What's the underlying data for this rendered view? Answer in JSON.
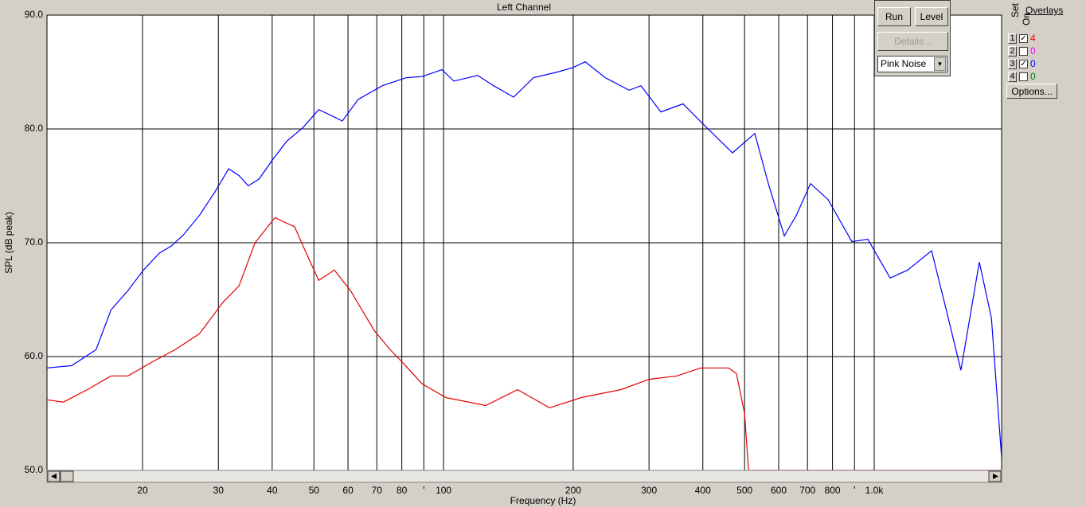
{
  "chart_data": {
    "type": "line",
    "title": "Left Channel",
    "xlabel": "Frequency (Hz)",
    "ylabel": "SPL (dB peak)",
    "xscale": "log",
    "xlim": [
      12,
      1976
    ],
    "ylim": [
      50,
      90
    ],
    "xticks": [
      20,
      30,
      40,
      50,
      60,
      70,
      80,
      100,
      200,
      300,
      400,
      500,
      600,
      700,
      800,
      {
        "value": 1000,
        "label": "1.0k"
      }
    ],
    "xminor": [
      90,
      900
    ],
    "yticks": [
      {
        "value": 50,
        "label": "50.0"
      },
      {
        "value": 60,
        "label": "60.0"
      },
      {
        "value": 70,
        "label": "70.0"
      },
      {
        "value": 80,
        "label": "80.0"
      },
      {
        "value": 90,
        "label": "90.0"
      }
    ],
    "grid": true,
    "series": [
      {
        "color": "#0000ff",
        "x": [
          12,
          13.7,
          15.6,
          16.9,
          18.5,
          20.1,
          21.9,
          23.3,
          24.9,
          27.1,
          29.5,
          31.7,
          33.5,
          35.2,
          37.3,
          40.1,
          43.2,
          47.1,
          51.3,
          54.7,
          58.2,
          63.4,
          72.1,
          81.9,
          89.2,
          99.1,
          105.7,
          120,
          130.7,
          145.4,
          161.8,
          183.8,
          200,
          213.3,
          237.3,
          269.8,
          287.3,
          319.6,
          359.9,
          403.6,
          468.8,
          528.1,
          567.6,
          618.3,
          659.2,
          711.4,
          781.3,
          887.3,
          966.6,
          1089,
          1196,
          1359,
          1479,
          1590,
          1754,
          1871,
          1976
        ],
        "values": [
          59.0,
          59.2,
          60.6,
          64.1,
          65.8,
          67.6,
          69.1,
          69.7,
          70.7,
          72.4,
          74.5,
          76.5,
          75.9,
          75.0,
          75.6,
          77.3,
          78.9,
          80.1,
          81.7,
          81.2,
          80.7,
          82.6,
          83.8,
          84.5,
          84.6,
          85.2,
          84.2,
          84.7,
          83.8,
          82.8,
          84.5,
          85.0,
          85.4,
          85.9,
          84.5,
          83.4,
          83.8,
          81.5,
          82.2,
          80.3,
          77.9,
          79.6,
          75.2,
          70.6,
          72.4,
          75.2,
          73.8,
          70.1,
          70.3,
          66.9,
          67.6,
          69.3,
          63.7,
          58.8,
          68.3,
          63.4,
          51.1
        ]
      },
      {
        "color": "#e00000",
        "x": [
          12,
          13.1,
          14.9,
          16.9,
          18.5,
          21.0,
          23.8,
          27.1,
          30.8,
          33.5,
          36.5,
          40.6,
          45.1,
          48.1,
          51.3,
          55.8,
          60.8,
          69.0,
          75.2,
          80.2,
          89.2,
          101.3,
          125.3,
          148.6,
          176.2,
          208.9,
          258.3,
          300,
          348.1,
          395.4,
          459.0,
          478.6,
          500,
          510.5,
          1976
        ],
        "values": [
          56.2,
          56.0,
          57.1,
          58.3,
          58.3,
          59.5,
          60.6,
          62.0,
          64.8,
          66.2,
          70.0,
          72.2,
          71.4,
          69.0,
          66.7,
          67.6,
          65.8,
          62.3,
          60.6,
          59.5,
          57.6,
          56.4,
          55.7,
          57.1,
          55.5,
          56.4,
          57.1,
          58.0,
          58.3,
          59.0,
          59.0,
          58.5,
          55.0,
          50.0,
          50.0
        ]
      }
    ]
  },
  "ui": {
    "run": "Run",
    "level": "Level",
    "details": "Details...",
    "signal": "Pink Noise",
    "set": "Set",
    "on": "On",
    "overlays": "Overlays",
    "options": "Options...",
    "rows": [
      {
        "set": "1",
        "on": true,
        "value": "4",
        "color": "#ff0000"
      },
      {
        "set": "2",
        "on": false,
        "value": "0",
        "color": "#ff00ff"
      },
      {
        "set": "3",
        "on": true,
        "value": "0",
        "color": "#0000ff"
      },
      {
        "set": "4",
        "on": false,
        "value": "0",
        "color": "#008000"
      }
    ]
  }
}
